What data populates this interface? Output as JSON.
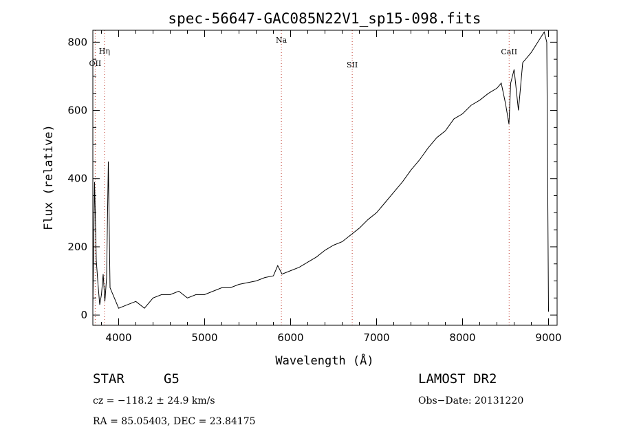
{
  "chart_data": {
    "type": "line",
    "title": "spec-56647-GAC085N22V1_sp15-098.fits",
    "xlabel": "Wavelength (Å)",
    "ylabel": "Flux (relative)",
    "xlim": [
      3700,
      9100
    ],
    "ylim": [
      -30,
      835
    ],
    "x_ticks": [
      4000,
      5000,
      6000,
      7000,
      8000,
      9000
    ],
    "y_ticks": [
      0,
      200,
      400,
      600,
      800
    ],
    "grid": false,
    "series": [
      {
        "x": [
          3700,
          3720,
          3740,
          3760,
          3780,
          3800,
          3820,
          3840,
          3860,
          3880,
          3900,
          3950,
          4000,
          4100,
          4200,
          4300,
          4400,
          4500,
          4600,
          4700,
          4800,
          4900,
          5000,
          5100,
          5200,
          5300,
          5400,
          5500,
          5600,
          5700,
          5800,
          5850,
          5900,
          6000,
          6100,
          6200,
          6300,
          6400,
          6500,
          6600,
          6700,
          6800,
          6900,
          7000,
          7100,
          7200,
          7300,
          7400,
          7500,
          7600,
          7700,
          7800,
          7900,
          8000,
          8100,
          8200,
          8300,
          8400,
          8450,
          8500,
          8540,
          8560,
          8600,
          8650,
          8700,
          8800,
          8900,
          8950,
          8980,
          9000
        ],
        "y": [
          20,
          390,
          160,
          90,
          30,
          60,
          120,
          40,
          110,
          450,
          80,
          50,
          20,
          30,
          40,
          20,
          50,
          60,
          60,
          70,
          50,
          60,
          60,
          70,
          80,
          80,
          90,
          95,
          100,
          110,
          115,
          145,
          120,
          130,
          140,
          155,
          170,
          190,
          205,
          215,
          235,
          255,
          280,
          300,
          330,
          360,
          390,
          425,
          455,
          490,
          520,
          540,
          575,
          590,
          615,
          630,
          650,
          665,
          680,
          620,
          560,
          680,
          720,
          600,
          740,
          770,
          810,
          830,
          800,
          10
        ]
      }
    ],
    "annotations": [
      {
        "label": "OII",
        "x": 3727
      },
      {
        "label": "Hη",
        "x": 3835
      },
      {
        "label": "Na",
        "x": 5893
      },
      {
        "label": "SII",
        "x": 6717
      },
      {
        "label": "CaII",
        "x": 8542
      }
    ]
  },
  "info": {
    "classification": "STAR",
    "subclass": "G5",
    "survey": "LAMOST DR2",
    "redshift": "cz = −118.2 ± 24.9 km/s",
    "obs_date": "Obs−Date: 20131220",
    "coords": "RA =  85.05403, DEC =  23.84175"
  },
  "colors": {
    "spectrum": "#000000",
    "line_markers": "#c0392b",
    "axes": "#000000"
  }
}
